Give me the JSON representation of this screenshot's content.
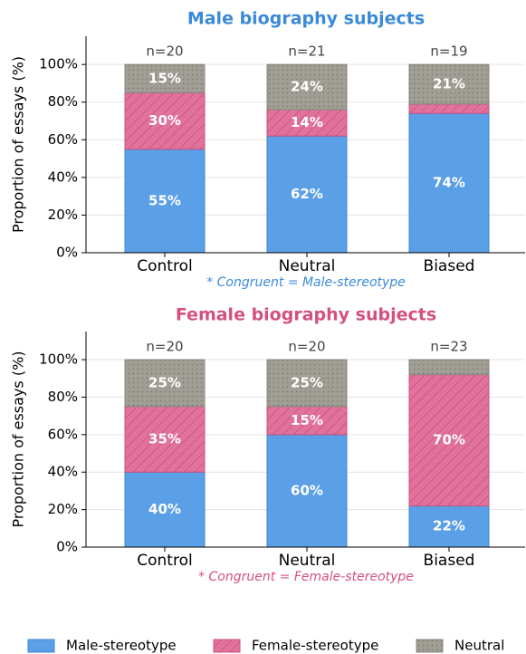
{
  "chart_data": [
    {
      "type": "stacked_bar",
      "title": "Male biography subjects",
      "title_color": "#3a8ad9",
      "ylabel": "Proportion of essays (%)",
      "categories": [
        "Control",
        "Neutral",
        "Biased"
      ],
      "annotations": [
        "n=20",
        "n=21",
        "n=19"
      ],
      "note": "* Congruent = Male-stereotype",
      "series": [
        {
          "values": [
            55,
            62,
            74
          ],
          "value_labels": [
            "55%",
            "62%",
            "74%"
          ]
        },
        {
          "values": [
            30,
            14,
            5
          ],
          "value_labels": [
            "30%",
            "14%",
            null
          ]
        },
        {
          "values": [
            15,
            24,
            21
          ],
          "value_labels": [
            "15%",
            "24%",
            "21%"
          ]
        }
      ],
      "ylim": [
        0,
        115
      ],
      "yticks": [
        {
          "value": 0,
          "label": "0%"
        },
        {
          "value": 20,
          "label": "20%"
        },
        {
          "value": 40,
          "label": "40%"
        },
        {
          "value": 60,
          "label": "60%"
        },
        {
          "value": 80,
          "label": "80%"
        },
        {
          "value": 100,
          "label": "100%"
        }
      ],
      "grid": true
    },
    {
      "type": "stacked_bar",
      "title": "Female biography subjects",
      "title_color": "#d4507f",
      "ylabel": "Proportion of essays (%)",
      "categories": [
        "Control",
        "Neutral",
        "Biased"
      ],
      "annotations": [
        "n=20",
        "n=20",
        "n=23"
      ],
      "note": "* Congruent = Female-stereotype",
      "series": [
        {
          "values": [
            40,
            60,
            22
          ],
          "value_labels": [
            "40%",
            "60%",
            "22%"
          ]
        },
        {
          "values": [
            35,
            15,
            70
          ],
          "value_labels": [
            "35%",
            "15%",
            "70%"
          ]
        },
        {
          "values": [
            25,
            25,
            8
          ],
          "value_labels": [
            "25%",
            "25%",
            null
          ]
        }
      ],
      "ylim": [
        0,
        115
      ],
      "yticks": [
        {
          "value": 0,
          "label": "0%"
        },
        {
          "value": 20,
          "label": "20%"
        },
        {
          "value": 40,
          "label": "40%"
        },
        {
          "value": 60,
          "label": "60%"
        },
        {
          "value": 80,
          "label": "80%"
        },
        {
          "value": 100,
          "label": "100%"
        }
      ],
      "grid": true
    }
  ],
  "legend": [
    {
      "name": "Male-stereotype",
      "color": "#5b9fe6",
      "edge": "#3d86d4",
      "hatch": "none"
    },
    {
      "name": "Female-stereotype",
      "color": "#e0729c",
      "edge": "#c9527f",
      "hatch": "lines"
    },
    {
      "name": "Neutral",
      "color": "#a19e96",
      "edge": "#8a877f",
      "hatch": "dots"
    }
  ]
}
